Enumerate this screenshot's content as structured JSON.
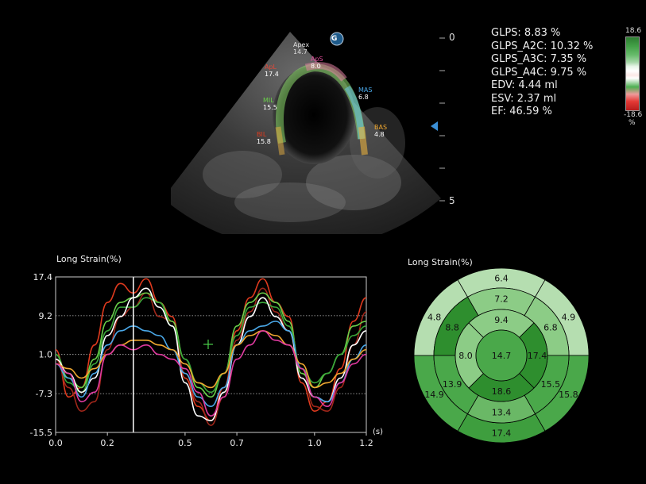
{
  "stats": {
    "glps": "GLPS: 8.83 %",
    "glps_a2c": "GLPS_A2C: 10.32 %",
    "glps_a3c": "GLPS_A3C: 7.35 %",
    "glps_a4c": "GLPS_A4C: 9.75 %",
    "edv": "EDV: 4.44 ml",
    "esv": "ESV: 2.37 ml",
    "ef": "EF: 46.59 %"
  },
  "colorbar": {
    "max": "18.6",
    "min": "-18.6",
    "unit": "%"
  },
  "depth_scale": {
    "top": "0",
    "bottom": "5"
  },
  "echo_labels": {
    "apex": {
      "name": "Apex",
      "value": "14.7"
    },
    "apl": {
      "name": "ApL",
      "value": "17.4"
    },
    "aps": {
      "name": "ApS",
      "value": "8.0"
    },
    "mil": {
      "name": "MIL",
      "value": "15.5"
    },
    "mas": {
      "name": "MAS",
      "value": "6.8"
    },
    "bil": {
      "name": "BIL",
      "value": "15.8"
    },
    "bas": {
      "name": "BAS",
      "value": "4.8"
    },
    "logo_glyph": "G"
  },
  "colors": {
    "trace_red": "#e03a1e",
    "trace_darkred": "#a0261a",
    "trace_green": "#6ad04a",
    "trace_lime": "#3aa83a",
    "trace_white": "#ffffff",
    "trace_blue": "#4aa8e8",
    "trace_orange": "#f0a830",
    "trace_magenta": "#e03aa0",
    "marker_blue": "#3b8fd6"
  },
  "chart_data": {
    "type": "line",
    "title": "Long Strain(%)",
    "xlabel": "(s)",
    "ylabel": "",
    "xlim": [
      0.0,
      1.2
    ],
    "ylim": [
      -15.5,
      17.4
    ],
    "x_ticks": [
      "0.0",
      "0.2",
      "0.5",
      "0.7",
      "1.0",
      "1.2"
    ],
    "x_tick_values": [
      0.0,
      0.2,
      0.5,
      0.7,
      1.0,
      1.2
    ],
    "y_ticks": [
      "17.4",
      "9.2",
      "1.0",
      "-7.3",
      "-15.5"
    ],
    "y_tick_values": [
      17.4,
      9.2,
      1.0,
      -7.3,
      -15.5
    ],
    "cursor_x": 0.3,
    "x": [
      0.0,
      0.05,
      0.1,
      0.15,
      0.2,
      0.25,
      0.3,
      0.35,
      0.4,
      0.45,
      0.5,
      0.55,
      0.6,
      0.65,
      0.7,
      0.75,
      0.8,
      0.85,
      0.9,
      0.95,
      1.0,
      1.05,
      1.1,
      1.15,
      1.2
    ],
    "series": [
      {
        "color": "#e03a1e",
        "values": [
          2,
          -8,
          -6,
          3,
          12,
          16,
          14,
          17,
          12,
          9,
          -4,
          -10,
          -13,
          -6,
          6,
          13,
          17,
          12,
          9,
          -5,
          -11,
          -9,
          -2,
          8,
          13
        ]
      },
      {
        "color": "#a0261a",
        "values": [
          0,
          -6,
          -11,
          -9,
          2,
          9,
          11,
          14,
          9,
          8,
          -3,
          -9,
          -14,
          -8,
          4,
          10,
          15,
          10,
          6,
          -2,
          -10,
          -11,
          -6,
          3,
          10
        ]
      },
      {
        "color": "#6ad04a",
        "values": [
          1,
          -4,
          -6,
          0,
          8,
          12,
          13,
          14,
          12,
          8,
          0,
          -6,
          -8,
          -3,
          7,
          12,
          14,
          12,
          8,
          -3,
          -6,
          -3,
          1,
          7,
          8
        ]
      },
      {
        "color": "#3aa83a",
        "values": [
          1,
          -5,
          -7,
          -1,
          6,
          11,
          11,
          13,
          12,
          7,
          0,
          -5,
          -7,
          -3,
          5,
          11,
          12,
          11,
          7,
          -2,
          -5,
          -3,
          1,
          5,
          7
        ]
      },
      {
        "color": "#ffffff",
        "values": [
          0,
          -3,
          -7,
          -4,
          5,
          9,
          13,
          15,
          11,
          7,
          -5,
          -12,
          -13,
          -7,
          3,
          9,
          13,
          9,
          6,
          -4,
          -8,
          -9,
          -4,
          3,
          6
        ]
      },
      {
        "color": "#4aa8e8",
        "values": [
          -1,
          -4,
          -8,
          -3,
          3,
          6,
          7,
          6,
          5,
          2,
          -3,
          -8,
          -10,
          -6,
          3,
          6,
          7,
          8,
          6,
          -2,
          -8,
          -9,
          -5,
          0,
          3
        ]
      },
      {
        "color": "#f0a830",
        "values": [
          -1,
          -2,
          -4,
          -2,
          1,
          3,
          4,
          4,
          3,
          2,
          -1,
          -5,
          -6,
          -3,
          3,
          5,
          6,
          5,
          3,
          -1,
          -6,
          -5,
          -3,
          0,
          2
        ]
      },
      {
        "color": "#e03aa0",
        "values": [
          -1,
          -3,
          -9,
          -7,
          1,
          3,
          2,
          3,
          1,
          0,
          -2,
          -7,
          -12,
          -8,
          0,
          3,
          6,
          4,
          3,
          -2,
          -8,
          -10,
          -5,
          -1,
          1
        ]
      }
    ]
  },
  "bullseye": {
    "title": "Long Strain(%)",
    "rings": [
      {
        "name": "basal",
        "values": [
          "6.4",
          "4.9",
          "15.8",
          "17.4",
          "14.9",
          "4.8"
        ],
        "fills": [
          "#b5deb0",
          "#b5deb0",
          "#4aa84a",
          "#3e9e3e",
          "#4aa84a",
          "#b5deb0"
        ]
      },
      {
        "name": "mid",
        "values": [
          "7.2",
          "6.8",
          "15.5",
          "13.4",
          "13.9",
          "8.8"
        ],
        "fills": [
          "#8ccc86",
          "#8ccc86",
          "#4aa84a",
          "#6ab866",
          "#4aa84a",
          "#2e8e2e"
        ]
      },
      {
        "name": "apical",
        "values": [
          "9.4",
          "17.4",
          "18.6",
          "8.0"
        ],
        "fills": [
          "#8ccc86",
          "#2e8e2e",
          "#2e8e2e",
          "#8ccc86"
        ]
      },
      {
        "name": "apex",
        "values": [
          "14.7"
        ],
        "fills": [
          "#4aa84a"
        ]
      }
    ]
  }
}
